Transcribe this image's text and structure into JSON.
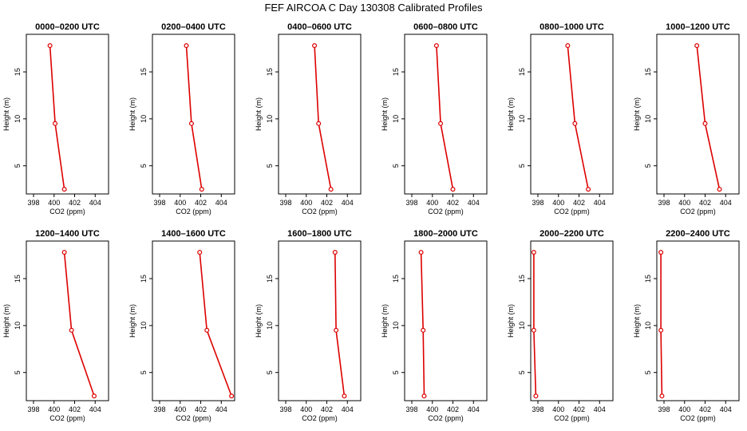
{
  "title": "FEF AIRCOA C  Day 130308  Calibrated Profiles",
  "series_color": "#dd0000",
  "chart_data": [
    {
      "type": "line",
      "title": "0000–0200 UTC",
      "xlabel": "CO2 (ppm)",
      "ylabel": "Height (m)",
      "xlim": [
        397.3,
        405.3
      ],
      "ylim": [
        2,
        19
      ],
      "xticks": [
        398,
        400,
        402,
        404
      ],
      "yticks": [
        5,
        10,
        15
      ],
      "x": [
        399.6,
        400.1,
        401.0
      ],
      "y": [
        17.8,
        9.5,
        2.5
      ]
    },
    {
      "type": "line",
      "title": "0200–0400 UTC",
      "xlabel": "CO2 (ppm)",
      "ylabel": "Height (m)",
      "xlim": [
        397.3,
        405.3
      ],
      "ylim": [
        2,
        19
      ],
      "xticks": [
        398,
        400,
        402,
        404
      ],
      "yticks": [
        5,
        10,
        15
      ],
      "x": [
        400.6,
        401.1,
        402.1
      ],
      "y": [
        17.8,
        9.5,
        2.5
      ]
    },
    {
      "type": "line",
      "title": "0400–0600 UTC",
      "xlabel": "CO2 (ppm)",
      "ylabel": "Height (m)",
      "xlim": [
        397.3,
        405.3
      ],
      "ylim": [
        2,
        19
      ],
      "xticks": [
        398,
        400,
        402,
        404
      ],
      "yticks": [
        5,
        10,
        15
      ],
      "x": [
        400.8,
        401.2,
        402.4
      ],
      "y": [
        17.8,
        9.5,
        2.5
      ]
    },
    {
      "type": "line",
      "title": "0600–0800 UTC",
      "xlabel": "CO2 (ppm)",
      "ylabel": "Height (m)",
      "xlim": [
        397.3,
        405.3
      ],
      "ylim": [
        2,
        19
      ],
      "xticks": [
        398,
        400,
        402,
        404
      ],
      "yticks": [
        5,
        10,
        15
      ],
      "x": [
        400.4,
        400.8,
        402.0
      ],
      "y": [
        17.8,
        9.5,
        2.5
      ]
    },
    {
      "type": "line",
      "title": "0800–1000 UTC",
      "xlabel": "CO2 (ppm)",
      "ylabel": "Height (m)",
      "xlim": [
        397.3,
        405.3
      ],
      "ylim": [
        2,
        19
      ],
      "xticks": [
        398,
        400,
        402,
        404
      ],
      "yticks": [
        5,
        10,
        15
      ],
      "x": [
        400.9,
        401.6,
        402.9
      ],
      "y": [
        17.8,
        9.5,
        2.5
      ]
    },
    {
      "type": "line",
      "title": "1000–1200 UTC",
      "xlabel": "CO2 (ppm)",
      "ylabel": "Height (m)",
      "xlim": [
        397.3,
        405.3
      ],
      "ylim": [
        2,
        19
      ],
      "xticks": [
        398,
        400,
        402,
        404
      ],
      "yticks": [
        5,
        10,
        15
      ],
      "x": [
        401.2,
        402.0,
        403.4
      ],
      "y": [
        17.8,
        9.5,
        2.5
      ]
    },
    {
      "type": "line",
      "title": "1200–1400 UTC",
      "xlabel": "CO2 (ppm)",
      "ylabel": "Height (m)",
      "xlim": [
        397.3,
        405.3
      ],
      "ylim": [
        2,
        19
      ],
      "xticks": [
        398,
        400,
        402,
        404
      ],
      "yticks": [
        5,
        10,
        15
      ],
      "x": [
        401.0,
        401.7,
        403.9
      ],
      "y": [
        17.8,
        9.5,
        2.5
      ]
    },
    {
      "type": "line",
      "title": "1400–1600 UTC",
      "xlabel": "CO2 (ppm)",
      "ylabel": "Height (m)",
      "xlim": [
        397.3,
        405.3
      ],
      "ylim": [
        2,
        19
      ],
      "xticks": [
        398,
        400,
        402,
        404
      ],
      "yticks": [
        5,
        10,
        15
      ],
      "x": [
        401.9,
        402.6,
        405.0
      ],
      "y": [
        17.8,
        9.5,
        2.5
      ]
    },
    {
      "type": "line",
      "title": "1600–1800 UTC",
      "xlabel": "CO2 (ppm)",
      "ylabel": "Height (m)",
      "xlim": [
        397.3,
        405.3
      ],
      "ylim": [
        2,
        19
      ],
      "xticks": [
        398,
        400,
        402,
        404
      ],
      "yticks": [
        5,
        10,
        15
      ],
      "x": [
        402.8,
        402.9,
        403.7
      ],
      "y": [
        17.8,
        9.5,
        2.5
      ]
    },
    {
      "type": "line",
      "title": "1800–2000 UTC",
      "xlabel": "CO2 (ppm)",
      "ylabel": "Height (m)",
      "xlim": [
        397.3,
        405.3
      ],
      "ylim": [
        2,
        19
      ],
      "xticks": [
        398,
        400,
        402,
        404
      ],
      "yticks": [
        5,
        10,
        15
      ],
      "x": [
        398.9,
        399.1,
        399.2
      ],
      "y": [
        17.8,
        9.5,
        2.5
      ]
    },
    {
      "type": "line",
      "title": "2000–2200 UTC",
      "xlabel": "CO2 (ppm)",
      "ylabel": "Height (m)",
      "xlim": [
        397.3,
        405.3
      ],
      "ylim": [
        2,
        19
      ],
      "xticks": [
        398,
        400,
        402,
        404
      ],
      "yticks": [
        5,
        10,
        15
      ],
      "x": [
        397.6,
        397.6,
        397.8
      ],
      "y": [
        17.8,
        9.5,
        2.5
      ]
    },
    {
      "type": "line",
      "title": "2200–2400 UTC",
      "xlabel": "CO2 (ppm)",
      "ylabel": "Height (m)",
      "xlim": [
        397.3,
        405.3
      ],
      "ylim": [
        2,
        19
      ],
      "xticks": [
        398,
        400,
        402,
        404
      ],
      "yticks": [
        5,
        10,
        15
      ],
      "x": [
        397.7,
        397.7,
        397.8
      ],
      "y": [
        17.8,
        9.5,
        2.5
      ]
    }
  ]
}
